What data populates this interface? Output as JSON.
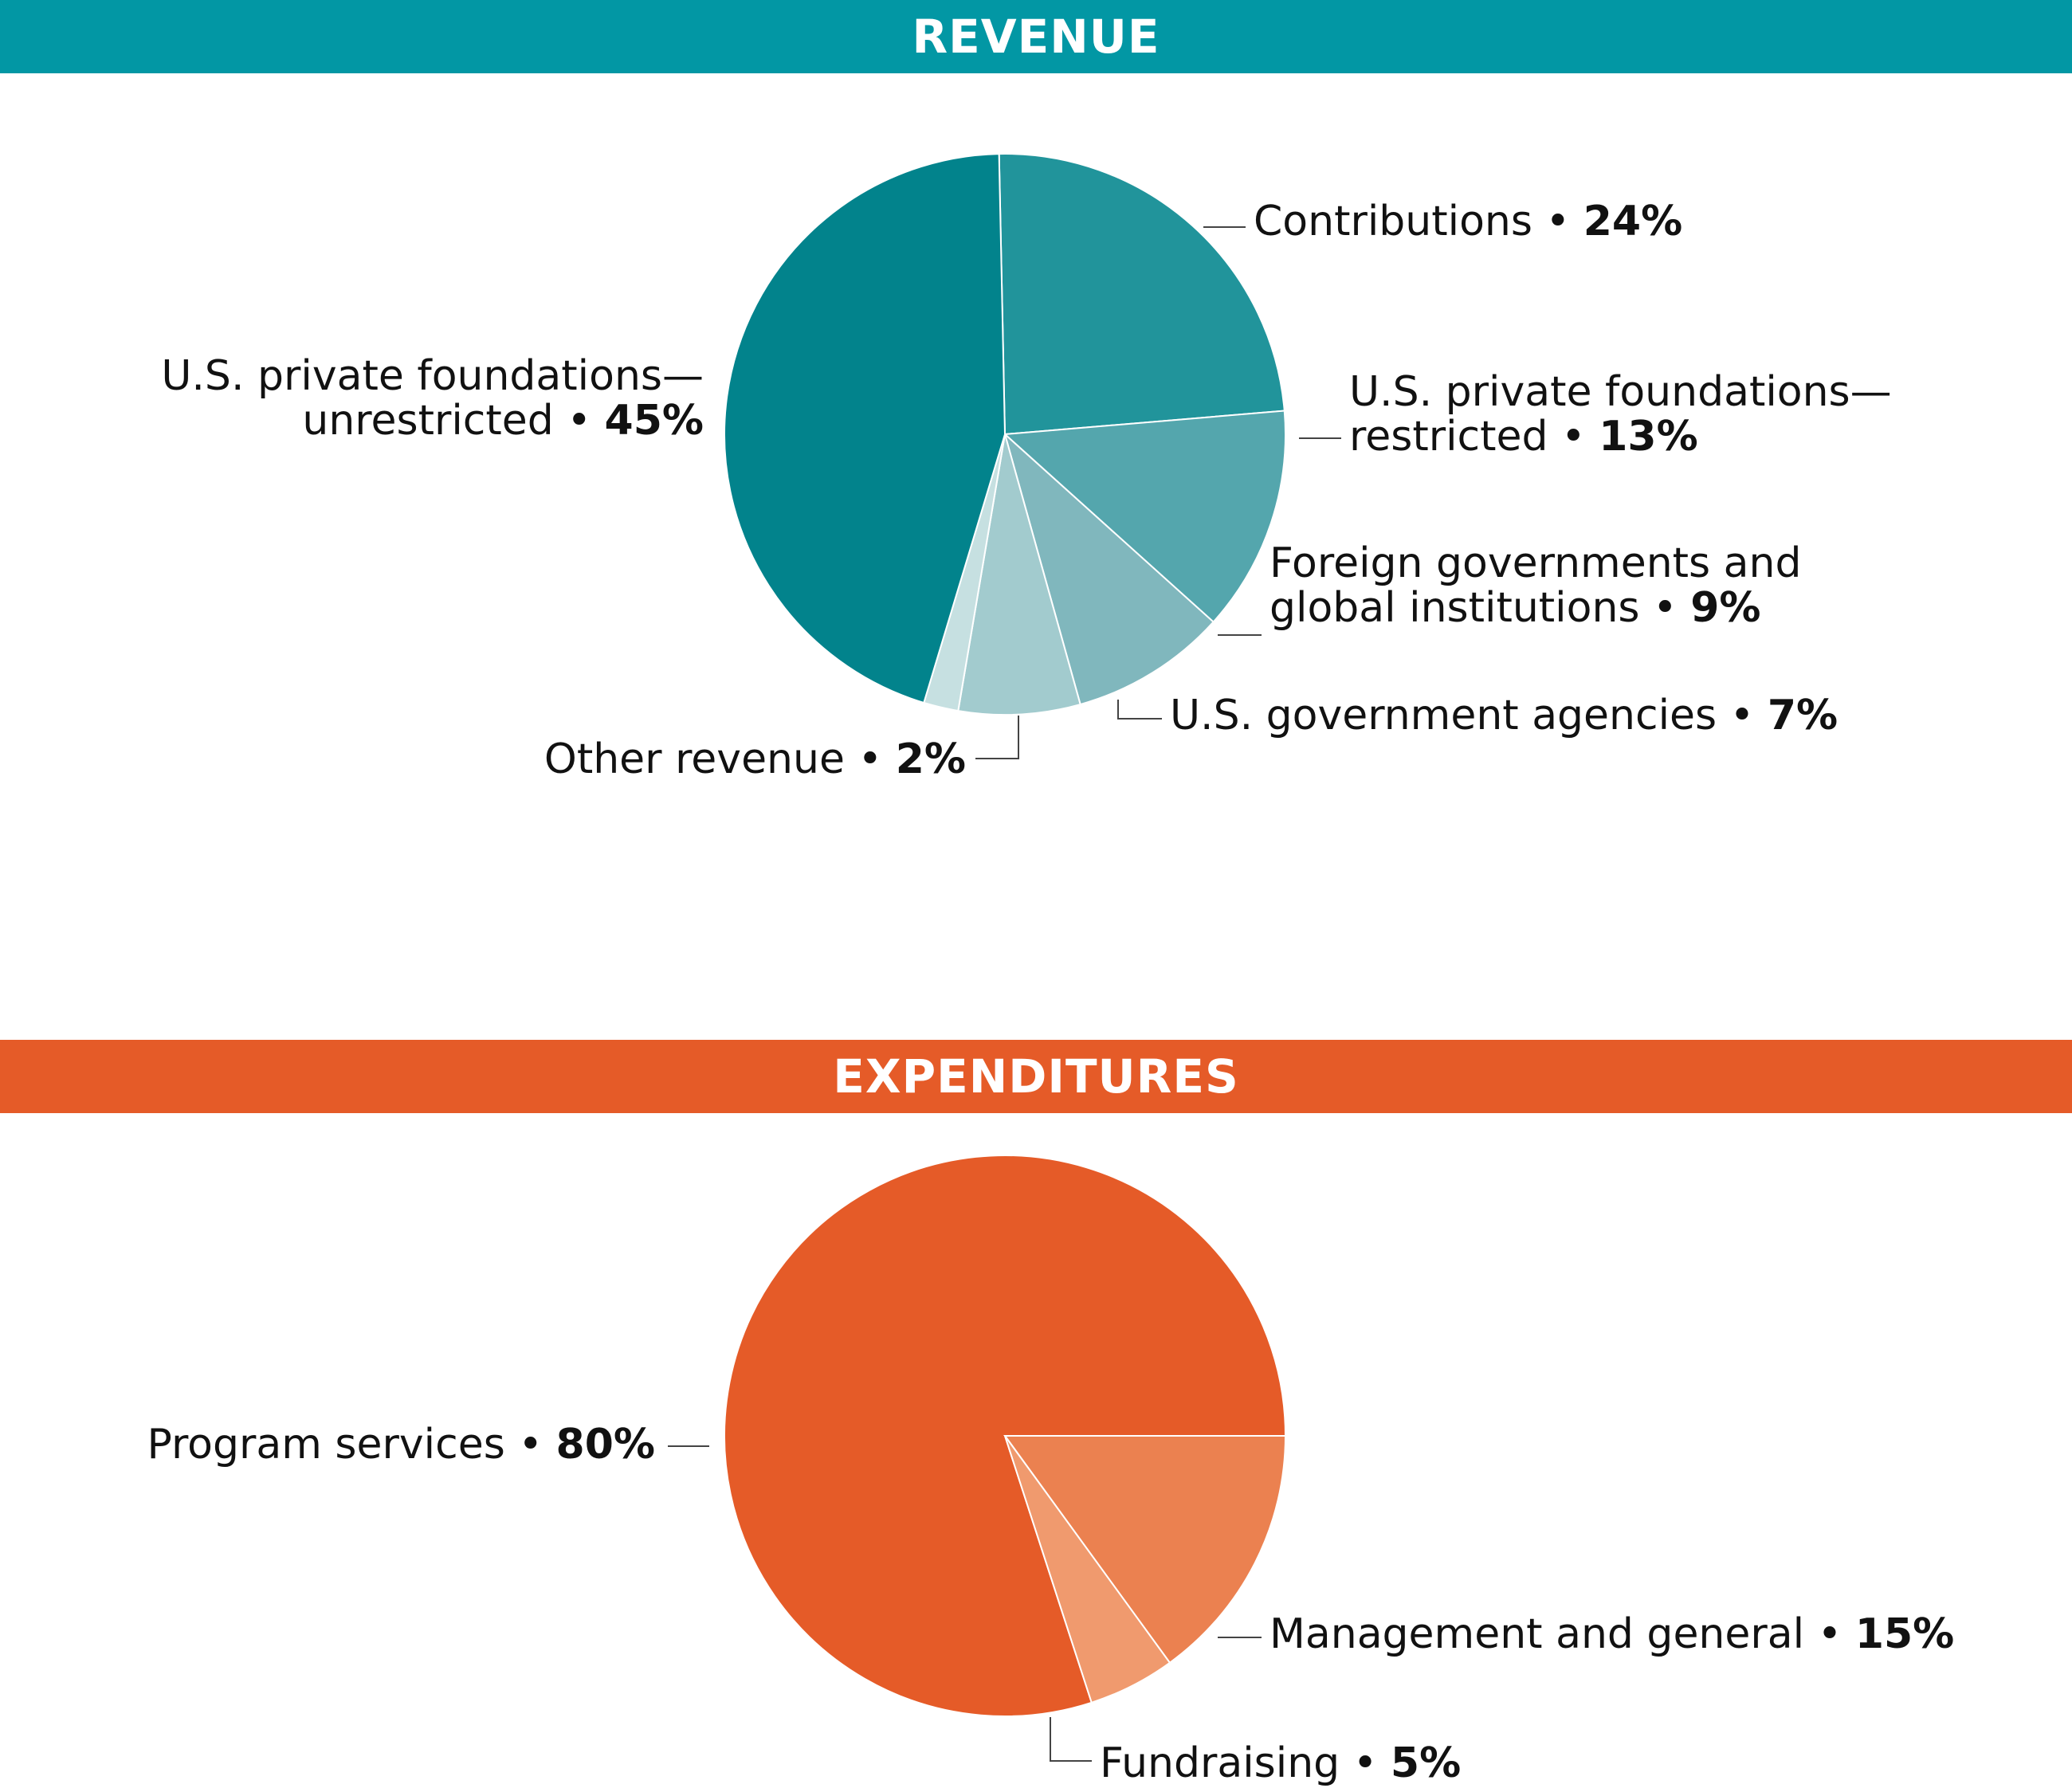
{
  "sections": {
    "revenue_title": "REVENUE",
    "expenditures_title": "EXPENDITURES"
  },
  "colors": {
    "revenue_banner": "#0297A4",
    "expenditures_banner": "#E55B28"
  },
  "chart_data": [
    {
      "type": "pie",
      "title": "REVENUE",
      "slices": [
        {
          "label": "Contributions",
          "value": 24,
          "value_label": "24%",
          "color": "#21949B"
        },
        {
          "label": "U.S. private foundations— restricted",
          "lines": [
            "U.S. private foundations—",
            "restricted"
          ],
          "value": 13,
          "value_label": "13%",
          "color": "#54A6AD"
        },
        {
          "label": "Foreign governments and global institutions",
          "lines": [
            "Foreign governments and",
            "global institutions"
          ],
          "value": 9,
          "value_label": "9%",
          "color": "#80B7BD"
        },
        {
          "label": "U.S. government agencies",
          "value": 7,
          "value_label": "7%",
          "color": "#A2CBCE"
        },
        {
          "label": "Other revenue",
          "value": 2,
          "value_label": "2%",
          "color": "#C6E0E1"
        },
        {
          "label": "U.S. private foundations— unrestricted",
          "lines": [
            "U.S. private foundations—",
            "unrestricted"
          ],
          "value": 45,
          "value_label": "45%",
          "color": "#02838C"
        }
      ]
    },
    {
      "type": "pie",
      "title": "EXPENDITURES",
      "slices": [
        {
          "label": "Program services",
          "value": 80,
          "value_label": "80%",
          "color": "#E55B28"
        },
        {
          "label": "Management and general",
          "value": 15,
          "value_label": "15%",
          "color": "#EB8150"
        },
        {
          "label": "Fundraising",
          "value": 5,
          "value_label": "5%",
          "color": "#F09A6E"
        }
      ]
    }
  ]
}
